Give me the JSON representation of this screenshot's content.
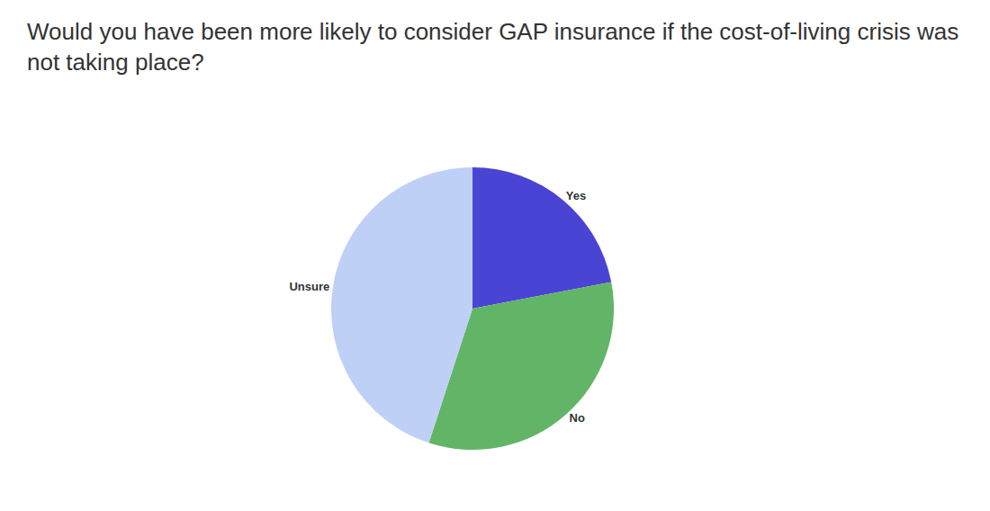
{
  "chart_data": {
    "type": "pie",
    "title": "Would you have been more likely to consider GAP insurance if the cost-of-living crisis was not taking place?",
    "categories": [
      "Yes",
      "No",
      "Unsure"
    ],
    "values": [
      22,
      33,
      45
    ],
    "colors": [
      "#4a44d4",
      "#62b566",
      "#bfd0f7"
    ],
    "data_labels": false,
    "legend": false
  }
}
